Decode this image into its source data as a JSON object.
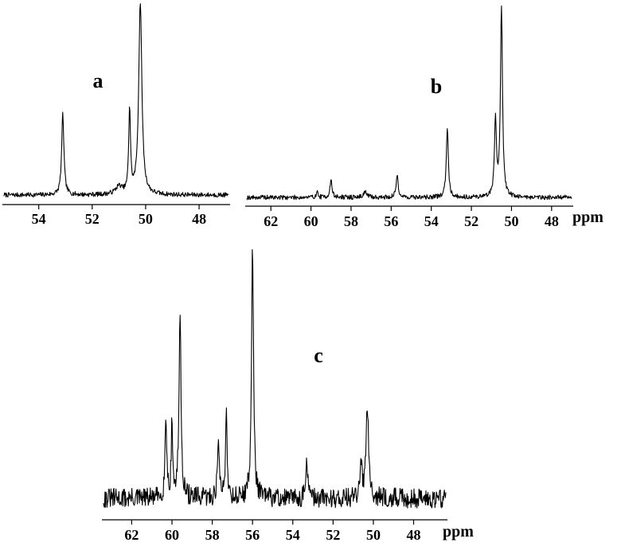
{
  "chart_data": [
    {
      "type": "line",
      "panel_label": "a",
      "title": "",
      "xlabel": "",
      "x_unit": "",
      "xlim": [
        55.3,
        46.9
      ],
      "x_ticks": [
        "54",
        "52",
        "50",
        "48"
      ],
      "x_tick_values": [
        54,
        52,
        50,
        48
      ],
      "ylim": [
        0,
        1
      ],
      "noise": 0.012,
      "peaks": [
        {
          "x": 53.1,
          "height": 0.42,
          "width": 0.05
        },
        {
          "x": 51.0,
          "height": 0.04,
          "width": 0.15
        },
        {
          "x": 50.6,
          "height": 0.44,
          "width": 0.04
        },
        {
          "x": 50.2,
          "height": 1.0,
          "width": 0.07
        }
      ]
    },
    {
      "type": "line",
      "panel_label": "b",
      "title": "",
      "xlabel": "",
      "x_unit": "ppm",
      "xlim": [
        63.2,
        47.0
      ],
      "x_ticks": [
        "62",
        "60",
        "58",
        "56",
        "54",
        "52",
        "50",
        "48"
      ],
      "x_tick_values": [
        62,
        60,
        58,
        56,
        54,
        52,
        50,
        48
      ],
      "ylim": [
        0,
        1
      ],
      "noise": 0.012,
      "peaks": [
        {
          "x": 59.7,
          "height": 0.03,
          "width": 0.05
        },
        {
          "x": 59.0,
          "height": 0.09,
          "width": 0.06
        },
        {
          "x": 57.3,
          "height": 0.03,
          "width": 0.1
        },
        {
          "x": 55.7,
          "height": 0.12,
          "width": 0.06
        },
        {
          "x": 53.2,
          "height": 0.37,
          "width": 0.06
        },
        {
          "x": 50.8,
          "height": 0.4,
          "width": 0.06
        },
        {
          "x": 50.5,
          "height": 1.0,
          "width": 0.06
        }
      ]
    },
    {
      "type": "line",
      "panel_label": "c",
      "title": "",
      "xlabel": "",
      "x_unit": "ppm",
      "xlim": [
        63.4,
        46.4
      ],
      "x_ticks": [
        "62",
        "60",
        "58",
        "56",
        "54",
        "52",
        "50",
        "48"
      ],
      "x_tick_values": [
        62,
        60,
        58,
        56,
        54,
        52,
        50,
        48
      ],
      "ylim": [
        0,
        1
      ],
      "noise": 0.04,
      "peaks": [
        {
          "x": 60.3,
          "height": 0.33,
          "width": 0.05
        },
        {
          "x": 60.0,
          "height": 0.31,
          "width": 0.04
        },
        {
          "x": 59.6,
          "height": 0.73,
          "width": 0.06
        },
        {
          "x": 57.7,
          "height": 0.25,
          "width": 0.05
        },
        {
          "x": 57.3,
          "height": 0.34,
          "width": 0.05
        },
        {
          "x": 56.0,
          "height": 1.0,
          "width": 0.06
        },
        {
          "x": 53.3,
          "height": 0.16,
          "width": 0.05
        },
        {
          "x": 50.6,
          "height": 0.13,
          "width": 0.05
        },
        {
          "x": 50.3,
          "height": 0.38,
          "width": 0.08
        }
      ]
    }
  ]
}
